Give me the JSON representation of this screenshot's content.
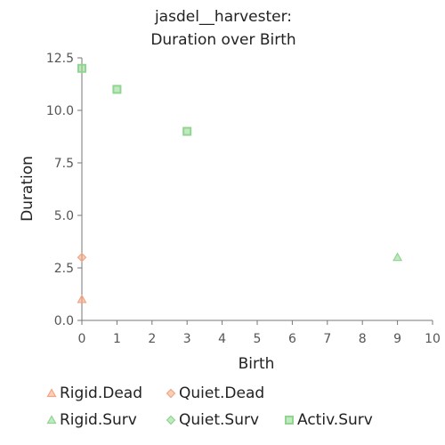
{
  "chart_data": {
    "type": "scatter",
    "title": [
      "jasdel__harvester:",
      "Duration over Birth"
    ],
    "xlabel": "Birth",
    "ylabel": "Duration",
    "xlim": [
      0,
      10
    ],
    "ylim": [
      0,
      12.5
    ],
    "xticks": [
      "0",
      "1",
      "2",
      "3",
      "4",
      "5",
      "6",
      "7",
      "8",
      "9",
      "10"
    ],
    "yticks": [
      "0.0",
      "2.5",
      "5.0",
      "7.5",
      "10.0",
      "12.5"
    ],
    "grid": false,
    "legend_position": "bottom",
    "series": [
      {
        "name": "Rigid.Dead",
        "marker": "triangle",
        "color": "#f4a582",
        "points": [
          {
            "x": 0,
            "y": 1
          }
        ]
      },
      {
        "name": "Quiet.Dead",
        "marker": "diamond",
        "color": "#f4a582",
        "points": [
          {
            "x": 0,
            "y": 3
          }
        ]
      },
      {
        "name": "Rigid.Surv",
        "marker": "triangle",
        "color": "#8fd68f",
        "points": [
          {
            "x": 9,
            "y": 3
          }
        ]
      },
      {
        "name": "Quiet.Surv",
        "marker": "diamond",
        "color": "#8fd68f",
        "points": []
      },
      {
        "name": "Activ.Surv",
        "marker": "square",
        "color": "#8fd68f",
        "points": [
          {
            "x": 0,
            "y": 12
          },
          {
            "x": 1,
            "y": 11
          },
          {
            "x": 3,
            "y": 9
          }
        ]
      }
    ]
  }
}
